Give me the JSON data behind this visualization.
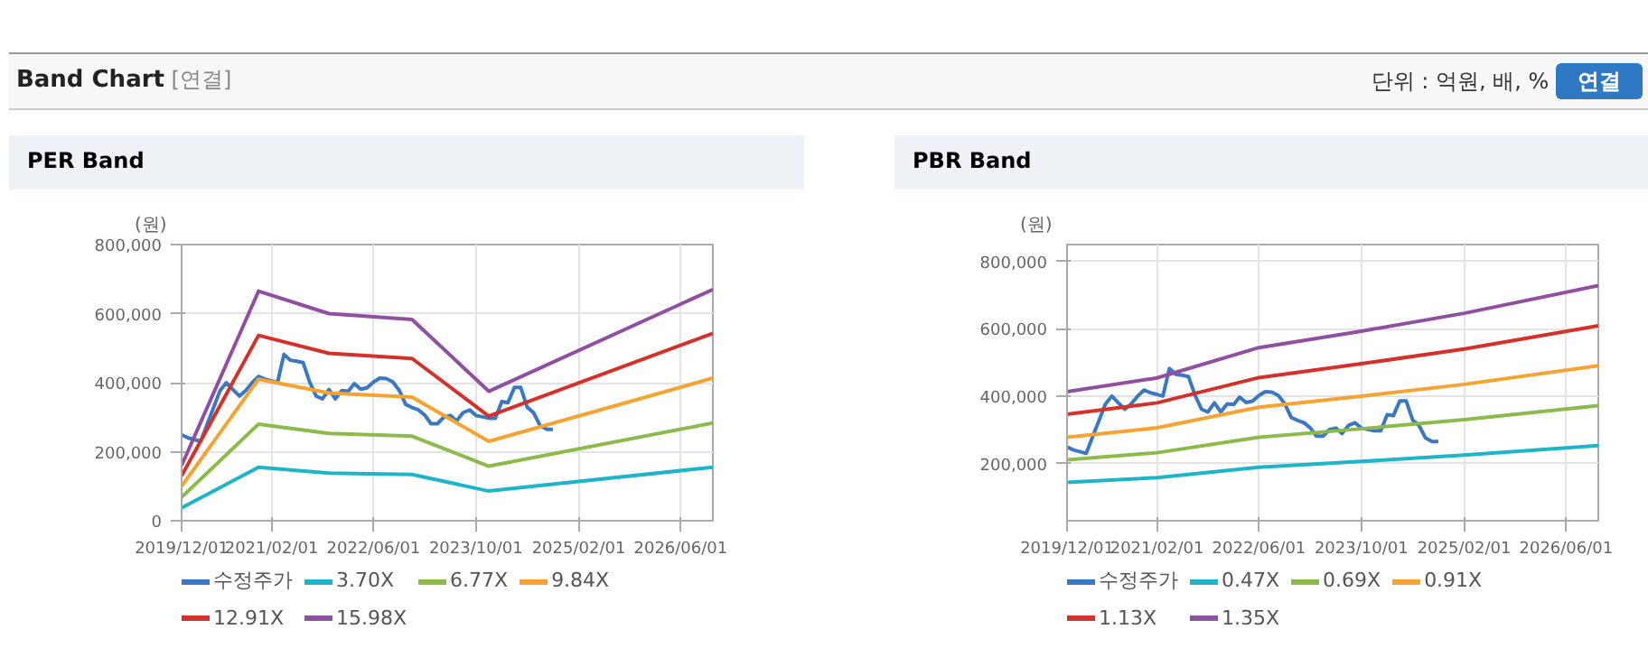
{
  "chart_data": [
    {
      "type": "line",
      "title": "PER Band",
      "ylabel": "(원)",
      "annotations": [
        "Band Chart",
        "[연결]",
        "단위 : 억원, 배, %",
        "연결"
      ],
      "legend": "bottom",
      "grid": true,
      "marker": "none",
      "line_style": "solid",
      "xlim": [
        "2019-12-01",
        "2026-11-01"
      ],
      "xticks": [
        {
          "value": "2019-12-01",
          "label": "2019/12/01"
        },
        {
          "value": "2021-02-01",
          "label": "2021/02/01"
        },
        {
          "value": "2022-06-01",
          "label": "2022/06/01"
        },
        {
          "value": "2023-10-01",
          "label": "2023/10/01"
        },
        {
          "value": "2025-02-01",
          "label": "2025/02/01"
        },
        {
          "value": "2026-06-01",
          "label": "2026/06/01"
        }
      ],
      "ylim": [
        0,
        800000
      ],
      "yticks": [
        0,
        {
          "value": 200000,
          "label": "200,000"
        },
        {
          "value": 400000,
          "label": "400,000"
        },
        {
          "value": 600000,
          "label": "600,000"
        },
        {
          "value": 800000,
          "label": "800,000"
        }
      ],
      "series": [
        {
          "name": "수정주가",
          "color": "#3a78c3",
          "x": [
            "2019-12-01",
            "2020-01-01",
            "2020-03-01",
            "2020-04-01",
            "2020-06-01",
            "2020-07-01",
            "2020-08-01",
            "2020-09-01",
            "2020-10-01",
            "2020-11-01",
            "2020-12-01",
            "2021-01-01",
            "2021-02-01",
            "2021-03-01",
            "2021-04-01",
            "2021-05-01",
            "2021-06-01",
            "2021-07-01",
            "2021-08-01",
            "2021-09-01",
            "2021-10-01",
            "2021-11-01",
            "2021-12-01",
            "2022-01-01",
            "2022-02-01",
            "2022-03-01",
            "2022-04-01",
            "2022-05-01",
            "2022-06-01",
            "2022-07-01",
            "2022-08-01",
            "2022-09-01",
            "2022-10-01",
            "2022-11-01",
            "2022-12-01",
            "2023-01-01",
            "2023-02-01",
            "2023-03-01",
            "2023-04-01",
            "2023-05-01",
            "2023-06-01",
            "2023-07-01",
            "2023-08-01",
            "2023-09-01",
            "2023-10-01",
            "2023-12-01",
            "2024-01-01",
            "2024-02-01",
            "2024-03-01",
            "2024-04-01",
            "2024-05-01",
            "2024-06-01",
            "2024-07-01",
            "2024-08-01",
            "2024-09-01",
            "2024-10-01"
          ],
          "values": [
            249000,
            240000,
            230000,
            280000,
            377000,
            400000,
            380000,
            361000,
            377000,
            400000,
            418000,
            410000,
            405000,
            400000,
            482000,
            465000,
            462000,
            458000,
            402000,
            361000,
            353000,
            380000,
            353000,
            377000,
            375000,
            397000,
            381000,
            385000,
            402000,
            413000,
            412000,
            402000,
            378000,
            337000,
            328000,
            321000,
            305000,
            281000,
            281000,
            300000,
            305000,
            289000,
            313000,
            321000,
            305000,
            297000,
            297000,
            345000,
            342000,
            386000,
            386000,
            329000,
            313000,
            276000,
            265000,
            265000
          ]
        },
        {
          "name": "3.70X",
          "color": "#1fb5c8",
          "x": [
            "2019-12-01",
            "2020-12-01",
            "2021-11-01",
            "2022-12-01",
            "2023-12-01",
            "2026-11-01"
          ],
          "values": [
            37000,
            155000,
            138000,
            134000,
            86000,
            155000
          ]
        },
        {
          "name": "6.77X",
          "color": "#8cba4b",
          "x": [
            "2019-12-01",
            "2020-12-01",
            "2021-11-01",
            "2022-12-01",
            "2023-12-01",
            "2026-11-01"
          ],
          "values": [
            68000,
            280000,
            253000,
            245000,
            158000,
            283000
          ]
        },
        {
          "name": "9.84X",
          "color": "#f5a431",
          "x": [
            "2019-12-01",
            "2020-12-01",
            "2021-11-01",
            "2022-12-01",
            "2023-12-01",
            "2026-11-01"
          ],
          "values": [
            100000,
            410000,
            370000,
            358000,
            230000,
            413000
          ]
        },
        {
          "name": "12.91X",
          "color": "#d3312a",
          "x": [
            "2019-12-01",
            "2020-12-01",
            "2021-11-01",
            "2022-12-01",
            "2023-12-01",
            "2026-11-01"
          ],
          "values": [
            130000,
            537000,
            485000,
            470000,
            303000,
            543000
          ]
        },
        {
          "name": "15.98X",
          "color": "#9050a0",
          "x": [
            "2019-12-01",
            "2020-12-01",
            "2021-11-01",
            "2022-12-01",
            "2023-12-01",
            "2026-11-01"
          ],
          "values": [
            160000,
            665000,
            600000,
            583000,
            375000,
            670000
          ]
        }
      ]
    },
    {
      "type": "line",
      "title": "PBR Band",
      "ylabel": "(원)",
      "legend": "bottom",
      "grid": true,
      "marker": "none",
      "line_style": "solid",
      "xlim": [
        "2019-12-01",
        "2026-11-01"
      ],
      "xticks": [
        {
          "value": "2019-12-01",
          "label": "2019/12/01"
        },
        {
          "value": "2021-02-01",
          "label": "2021/02/01"
        },
        {
          "value": "2022-06-01",
          "label": "2022/06/01"
        },
        {
          "value": "2023-10-01",
          "label": "2023/10/01"
        },
        {
          "value": "2025-02-01",
          "label": "2025/02/01"
        },
        {
          "value": "2026-06-01",
          "label": "2026/06/01"
        }
      ],
      "ylim": [
        30000,
        850000
      ],
      "yticks": [
        {
          "value": 200000,
          "label": "200,000"
        },
        {
          "value": 400000,
          "label": "400,000"
        },
        {
          "value": 600000,
          "label": "600,000"
        },
        {
          "value": 800000,
          "label": "800,000"
        }
      ],
      "series": [
        {
          "name": "수정주가",
          "color": "#3a78c3",
          "x": [
            "2019-12-01",
            "2020-01-01",
            "2020-03-01",
            "2020-04-01",
            "2020-06-01",
            "2020-07-01",
            "2020-08-01",
            "2020-09-01",
            "2020-10-01",
            "2020-11-01",
            "2020-12-01",
            "2021-01-01",
            "2021-02-01",
            "2021-03-01",
            "2021-04-01",
            "2021-05-01",
            "2021-06-01",
            "2021-07-01",
            "2021-08-01",
            "2021-09-01",
            "2021-10-01",
            "2021-11-01",
            "2021-12-01",
            "2022-01-01",
            "2022-02-01",
            "2022-03-01",
            "2022-04-01",
            "2022-05-01",
            "2022-06-01",
            "2022-07-01",
            "2022-08-01",
            "2022-09-01",
            "2022-10-01",
            "2022-11-01",
            "2022-12-01",
            "2023-01-01",
            "2023-02-01",
            "2023-03-01",
            "2023-04-01",
            "2023-05-01",
            "2023-06-01",
            "2023-07-01",
            "2023-08-01",
            "2023-09-01",
            "2023-10-01",
            "2023-12-01",
            "2024-01-01",
            "2024-02-01",
            "2024-03-01",
            "2024-04-01",
            "2024-05-01",
            "2024-06-01",
            "2024-07-01",
            "2024-08-01",
            "2024-09-01",
            "2024-10-01"
          ],
          "values": [
            249000,
            240000,
            230000,
            280000,
            377000,
            400000,
            380000,
            361000,
            377000,
            400000,
            418000,
            410000,
            405000,
            400000,
            482000,
            465000,
            462000,
            458000,
            402000,
            361000,
            353000,
            380000,
            353000,
            377000,
            375000,
            397000,
            381000,
            385000,
            402000,
            413000,
            412000,
            402000,
            378000,
            337000,
            328000,
            321000,
            305000,
            281000,
            281000,
            300000,
            305000,
            289000,
            313000,
            321000,
            305000,
            297000,
            297000,
            345000,
            342000,
            386000,
            386000,
            329000,
            313000,
            276000,
            265000,
            265000
          ]
        },
        {
          "name": "0.47X",
          "color": "#1fb5c8",
          "x": [
            "2019-12-01",
            "2021-02-01",
            "2022-06-01",
            "2023-10-01",
            "2025-02-01",
            "2026-11-01"
          ],
          "values": [
            144000,
            158000,
            189000,
            206000,
            225000,
            253000
          ]
        },
        {
          "name": "0.69X",
          "color": "#8cba4b",
          "x": [
            "2019-12-01",
            "2021-02-01",
            "2022-06-01",
            "2023-10-01",
            "2025-02-01",
            "2026-11-01"
          ],
          "values": [
            211000,
            232000,
            278000,
            303000,
            330000,
            372000
          ]
        },
        {
          "name": "0.91X",
          "color": "#f5a431",
          "x": [
            "2019-12-01",
            "2021-02-01",
            "2022-06-01",
            "2023-10-01",
            "2025-02-01",
            "2026-11-01"
          ],
          "values": [
            278000,
            306000,
            367000,
            400000,
            435000,
            490000
          ]
        },
        {
          "name": "1.13X",
          "color": "#d3312a",
          "x": [
            "2019-12-01",
            "2021-02-01",
            "2022-06-01",
            "2023-10-01",
            "2025-02-01",
            "2026-11-01"
          ],
          "values": [
            346000,
            380000,
            455000,
            496000,
            540000,
            609000
          ]
        },
        {
          "name": "1.35X",
          "color": "#9050a0",
          "x": [
            "2019-12-01",
            "2021-02-01",
            "2022-06-01",
            "2023-10-01",
            "2025-02-01",
            "2026-11-01"
          ],
          "values": [
            413000,
            454000,
            544000,
            593000,
            646000,
            728000
          ]
        }
      ]
    }
  ]
}
